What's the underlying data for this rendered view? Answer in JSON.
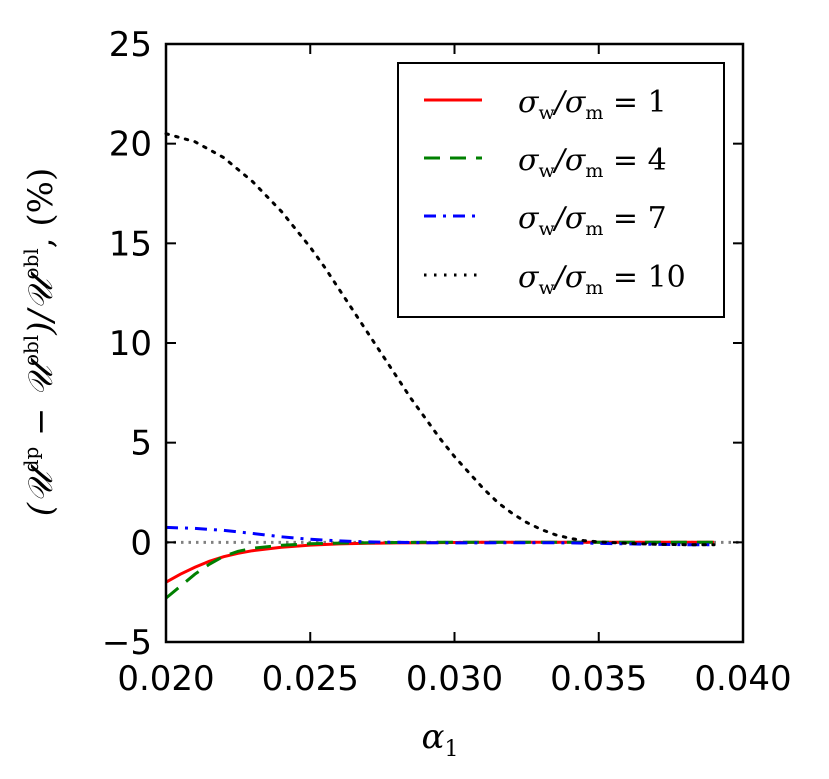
{
  "chart_data": {
    "type": "line",
    "title": "",
    "xlabel": "α1",
    "ylabel": "(𝒰dp − 𝒰obl)/𝒰obl, (%)",
    "xlim": [
      0.02,
      0.04
    ],
    "ylim": [
      -5,
      25
    ],
    "xticks": [
      0.02,
      0.025,
      0.03,
      0.035,
      0.04
    ],
    "xtick_labels": [
      "0.020",
      "0.025",
      "0.030",
      "0.035",
      "0.040"
    ],
    "yticks": [
      -5,
      0,
      5,
      10,
      15,
      20,
      25
    ],
    "ytick_labels": [
      "−5",
      "0",
      "5",
      "10",
      "15",
      "20",
      "25"
    ],
    "grid": false,
    "legend_position": "top-right",
    "reference_line": {
      "y": 0,
      "color": "#808080",
      "style": "dotted"
    },
    "series": [
      {
        "name": "σw/σm = 1",
        "color": "#ff0000",
        "style": "solid",
        "x": [
          0.02,
          0.0205,
          0.021,
          0.0215,
          0.022,
          0.0225,
          0.023,
          0.024,
          0.025,
          0.026,
          0.027,
          0.028,
          0.029,
          0.03,
          0.031,
          0.032,
          0.033,
          0.034,
          0.035,
          0.036,
          0.037,
          0.038,
          0.039
        ],
        "values": [
          -2.0,
          -1.6,
          -1.25,
          -0.95,
          -0.72,
          -0.55,
          -0.42,
          -0.25,
          -0.14,
          -0.08,
          -0.05,
          -0.03,
          -0.02,
          -0.01,
          0.0,
          0.0,
          0.0,
          0.0,
          0.0,
          0.0,
          0.0,
          0.0,
          0.0
        ]
      },
      {
        "name": "σw/σm = 4",
        "color": "#008000",
        "style": "dashed",
        "x": [
          0.02,
          0.0205,
          0.021,
          0.0215,
          0.022,
          0.0225,
          0.023,
          0.024,
          0.025,
          0.026,
          0.027,
          0.028,
          0.029,
          0.03,
          0.031,
          0.032,
          0.033,
          0.034,
          0.035,
          0.036,
          0.037,
          0.038,
          0.039
        ],
        "values": [
          -2.8,
          -2.2,
          -1.6,
          -1.1,
          -0.7,
          -0.45,
          -0.3,
          -0.15,
          -0.07,
          -0.04,
          -0.02,
          -0.01,
          0.0,
          0.0,
          0.0,
          0.0,
          0.0,
          0.0,
          0.0,
          0.0,
          0.0,
          0.0,
          0.0
        ]
      },
      {
        "name": "σw/σm = 7",
        "color": "#0000ff",
        "style": "dashdot",
        "x": [
          0.02,
          0.021,
          0.022,
          0.023,
          0.024,
          0.025,
          0.026,
          0.027,
          0.028,
          0.029,
          0.03,
          0.031,
          0.032,
          0.033,
          0.034,
          0.035,
          0.036,
          0.037,
          0.038,
          0.039
        ],
        "values": [
          0.75,
          0.7,
          0.6,
          0.45,
          0.28,
          0.15,
          0.07,
          0.02,
          0.0,
          -0.02,
          -0.03,
          -0.03,
          -0.02,
          -0.02,
          -0.03,
          -0.05,
          -0.08,
          -0.1,
          -0.12,
          -0.12
        ]
      },
      {
        "name": "σw/σm = 10",
        "color": "#000000",
        "style": "dotted",
        "x": [
          0.02,
          0.021,
          0.022,
          0.023,
          0.024,
          0.025,
          0.0255,
          0.026,
          0.0265,
          0.027,
          0.0275,
          0.028,
          0.0285,
          0.029,
          0.0295,
          0.03,
          0.0305,
          0.031,
          0.0315,
          0.032,
          0.0325,
          0.033,
          0.0335,
          0.034,
          0.0345,
          0.035,
          0.036,
          0.037,
          0.038,
          0.039
        ],
        "values": [
          20.5,
          20.1,
          19.3,
          18.1,
          16.6,
          14.8,
          13.8,
          12.7,
          11.6,
          10.5,
          9.4,
          8.3,
          7.2,
          6.2,
          5.2,
          4.3,
          3.5,
          2.7,
          2.0,
          1.45,
          1.0,
          0.65,
          0.38,
          0.2,
          0.08,
          0.02,
          -0.05,
          -0.1,
          -0.12,
          -0.12
        ]
      }
    ]
  },
  "legend": {
    "entries": [
      {
        "lhs": "σ",
        "lhs_sub": "w",
        "mid": "/σ",
        "mid_sub": "m",
        "rhs": " = 1"
      },
      {
        "lhs": "σ",
        "lhs_sub": "w",
        "mid": "/σ",
        "mid_sub": "m",
        "rhs": " = 4"
      },
      {
        "lhs": "σ",
        "lhs_sub": "w",
        "mid": "/σ",
        "mid_sub": "m",
        "rhs": " = 7"
      },
      {
        "lhs": "σ",
        "lhs_sub": "w",
        "mid": "/σ",
        "mid_sub": "m",
        "rhs": " = 10"
      }
    ]
  },
  "axis_text": {
    "x_main": "α",
    "x_sub": "1",
    "y_open": "(𝒰",
    "y_sup1": "dp",
    "y_minus": " − 𝒰",
    "y_sup2": "obl",
    "y_div": ")/𝒰",
    "y_sup3": "obl",
    "y_tail": ", (%)"
  }
}
